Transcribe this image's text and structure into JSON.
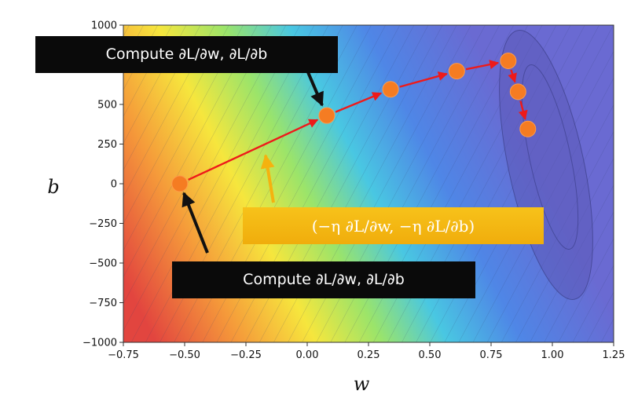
{
  "chart_data": {
    "type": "scatter",
    "title": "",
    "xlabel": "w",
    "ylabel": "b",
    "xlim": [
      -0.75,
      1.25
    ],
    "ylim": [
      -1000,
      1000
    ],
    "xticks": [
      "−0.75",
      "−0.50",
      "−0.25",
      "0.00",
      "0.25",
      "0.50",
      "0.75",
      "1.00",
      "1.25"
    ],
    "yticks": [
      "1000",
      "750",
      "500",
      "250",
      "0",
      "−250",
      "−500",
      "−750",
      "−1000"
    ],
    "background": "loss contour map (red → yellow → green → blue → purple)",
    "grid": false,
    "series": [
      {
        "x": [
          -0.52,
          0.08,
          0.34,
          0.61,
          0.82,
          0.86,
          0.9
        ],
        "y": [
          0,
          430,
          595,
          710,
          775,
          580,
          345
        ]
      }
    ],
    "annotations": [
      {
        "text": "Compute ∂L/∂w, ∂L/∂b",
        "points_to": "upper update point"
      },
      {
        "text": "(−η ∂L/∂w, −η ∂L/∂b)",
        "points_to": "update step arrow"
      },
      {
        "text": "Compute ∂L/∂w, ∂L/∂b",
        "points_to": "starting point"
      }
    ]
  },
  "colors": {
    "point": "#f57c22",
    "path_arrow": "#ee1a1a",
    "callout_arrow_dark": "#111111",
    "callout_arrow_gold": "#f5b20f"
  }
}
